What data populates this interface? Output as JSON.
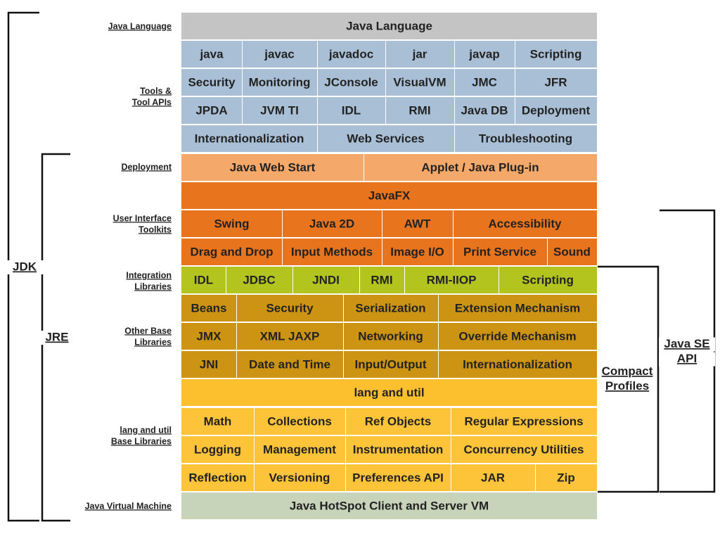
{
  "rows": [
    [
      "Java Language"
    ],
    [
      "java",
      "javac",
      "javadoc",
      "jar",
      "javap",
      "Scripting"
    ],
    [
      "Security",
      "Monitoring",
      "JConsole",
      "VisualVM",
      "JMC",
      "JFR"
    ],
    [
      "JPDA",
      "JVM TI",
      "IDL",
      "RMI",
      "Java DB",
      "Deployment"
    ],
    [
      "Internationalization",
      "Web Services",
      "Troubleshooting"
    ],
    [
      "Java Web Start",
      "Applet / Java Plug-in"
    ],
    [
      "JavaFX"
    ],
    [
      "Swing",
      "Java 2D",
      "AWT",
      "Accessibility"
    ],
    [
      "Drag and Drop",
      "Input Methods",
      "Image I/O",
      "Print Service",
      "Sound"
    ],
    [
      "IDL",
      "JDBC",
      "JNDI",
      "RMI",
      "RMI-IIOP",
      "Scripting"
    ],
    [
      "Beans",
      "Security",
      "Serialization",
      "Extension Mechanism"
    ],
    [
      "JMX",
      "XML JAXP",
      "Networking",
      "Override Mechanism"
    ],
    [
      "JNI",
      "Date and Time",
      "Input/Output",
      "Internationalization"
    ],
    [
      "lang and util"
    ],
    [
      "Math",
      "Collections",
      "Ref Objects",
      "Regular Expressions"
    ],
    [
      "Logging",
      "Management",
      "Instrumentation",
      "Concurrency Utilities"
    ],
    [
      "Reflection",
      "Versioning",
      "Preferences API",
      "JAR",
      "Zip"
    ],
    [
      "Java HotSpot Client and Server VM"
    ]
  ],
  "side_labels": [
    [
      "Java Language"
    ],
    [
      "Tools &",
      "Tool APIs"
    ],
    [
      "Deployment"
    ],
    [
      "User Interface",
      "Toolkits"
    ],
    [
      "Integration",
      "Libraries"
    ],
    [
      "Other Base",
      "Libraries"
    ],
    [
      "lang and util",
      "Base Libraries"
    ],
    [
      "Java Virtual Machine"
    ]
  ],
  "brackets": {
    "jdk": [
      "JDK"
    ],
    "jre": [
      "JRE"
    ],
    "compact_profiles": [
      "Compact",
      "Profiles"
    ],
    "java_se_api": [
      "Java SE",
      "API"
    ]
  }
}
